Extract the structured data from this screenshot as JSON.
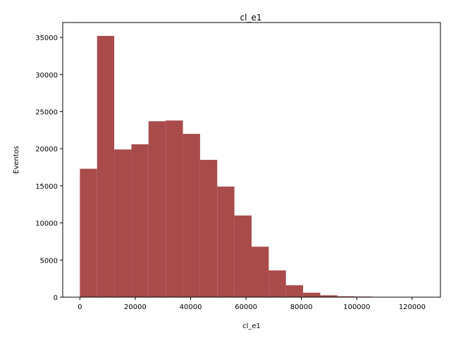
{
  "chart_data": {
    "type": "bar",
    "title": "cl_e1",
    "xlabel": "cl_e1",
    "ylabel": "Eventos",
    "bar_color": "#a94b4b",
    "bin_edges": [
      0,
      6200,
      12400,
      18600,
      24800,
      31000,
      37200,
      43400,
      49600,
      55800,
      62000,
      68200,
      74400,
      80600,
      86800,
      93000,
      99200,
      105400,
      111600,
      117800,
      124000
    ],
    "values": [
      17300,
      35200,
      19900,
      20600,
      23700,
      23800,
      22000,
      18500,
      14900,
      11000,
      6800,
      3600,
      1600,
      600,
      250,
      120,
      80,
      20,
      10,
      10
    ],
    "xlim": [
      -6200,
      130200
    ],
    "ylim": [
      0,
      37000
    ],
    "xticks": [
      0,
      20000,
      40000,
      60000,
      80000,
      100000,
      120000
    ],
    "yticks": [
      0,
      5000,
      10000,
      15000,
      20000,
      25000,
      30000,
      35000
    ],
    "grid": false,
    "legend": false
  }
}
